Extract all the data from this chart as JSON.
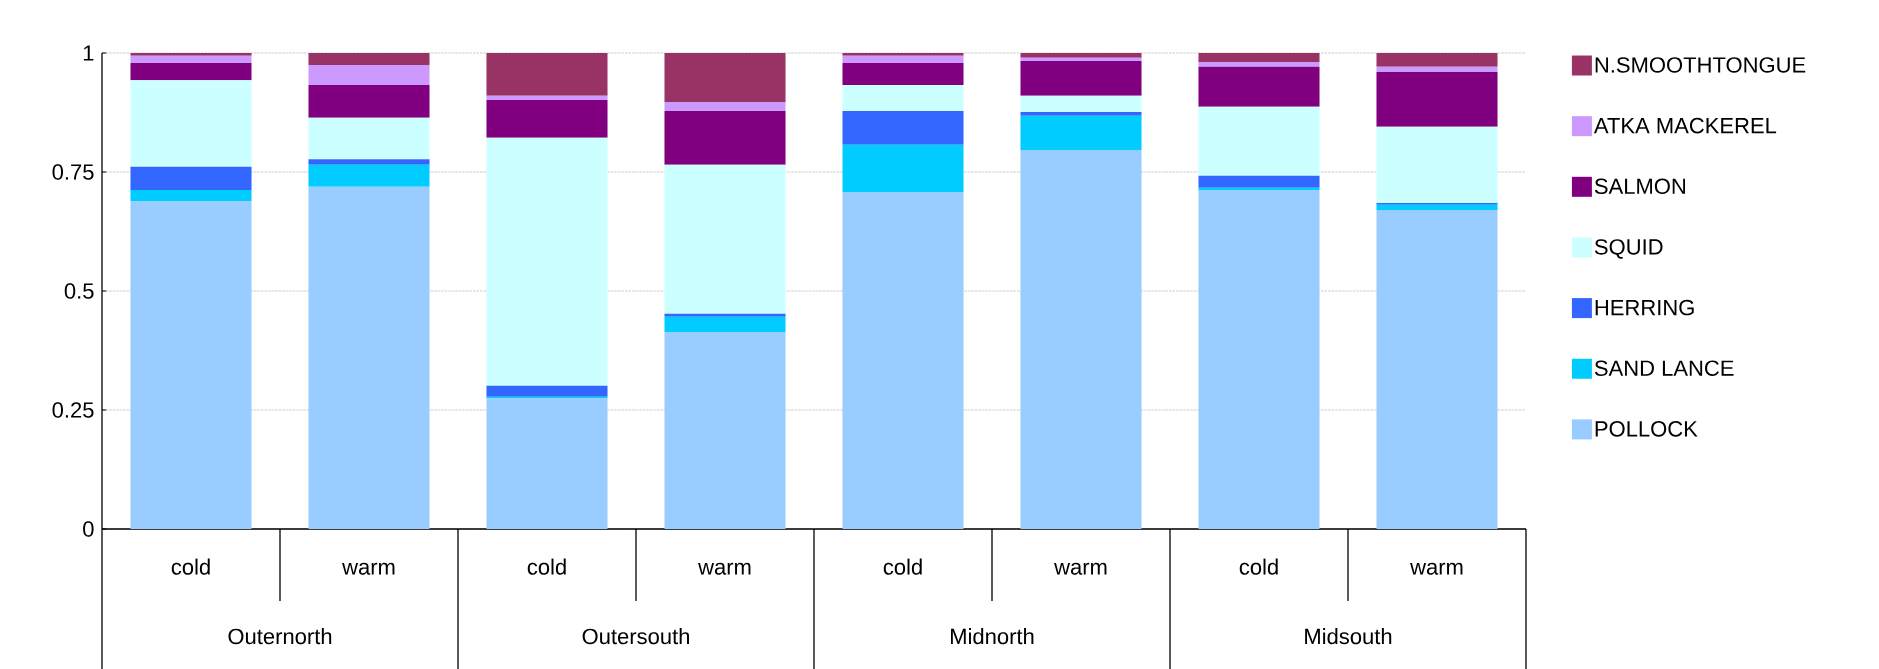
{
  "chart_data": {
    "type": "bar",
    "stacked": true,
    "categories": [
      "cold",
      "warm",
      "cold",
      "warm",
      "cold",
      "warm",
      "cold",
      "warm"
    ],
    "annotations": [
      "Outernorth",
      "Outersouth",
      "Midnorth",
      "Midsouth"
    ],
    "series": [
      {
        "name": "POLLOCK",
        "color": "#99ccff",
        "values": [
          0.689,
          0.719,
          0.274,
          0.414,
          0.708,
          0.796,
          0.712,
          0.67
        ]
      },
      {
        "name": "SAND LANCE",
        "color": "#00ccff",
        "values": [
          0.023,
          0.046,
          0.004,
          0.032,
          0.099,
          0.072,
          0.005,
          0.011
        ]
      },
      {
        "name": "HERRING",
        "color": "#3366ff",
        "values": [
          0.049,
          0.012,
          0.023,
          0.006,
          0.071,
          0.008,
          0.025,
          0.004
        ]
      },
      {
        "name": "SQUID",
        "color": "#ccffff",
        "values": [
          0.182,
          0.087,
          0.521,
          0.313,
          0.055,
          0.034,
          0.145,
          0.16
        ]
      },
      {
        "name": "SALMON",
        "color": "#800080",
        "values": [
          0.036,
          0.069,
          0.079,
          0.113,
          0.046,
          0.073,
          0.084,
          0.115
        ]
      },
      {
        "name": "ATKA MACKEREL",
        "color": "#cc99ff",
        "values": [
          0.015,
          0.042,
          0.009,
          0.019,
          0.015,
          0.007,
          0.01,
          0.011
        ]
      },
      {
        "name": "N.SMOOTHTONGUE",
        "color": "#993366",
        "values": [
          0.006,
          0.025,
          0.09,
          0.103,
          0.006,
          0.01,
          0.019,
          0.029
        ]
      }
    ],
    "ylim": [
      0,
      1
    ],
    "yticks": [
      0,
      0.25,
      0.5,
      0.75,
      1
    ],
    "grid": "y",
    "legend": "right"
  }
}
